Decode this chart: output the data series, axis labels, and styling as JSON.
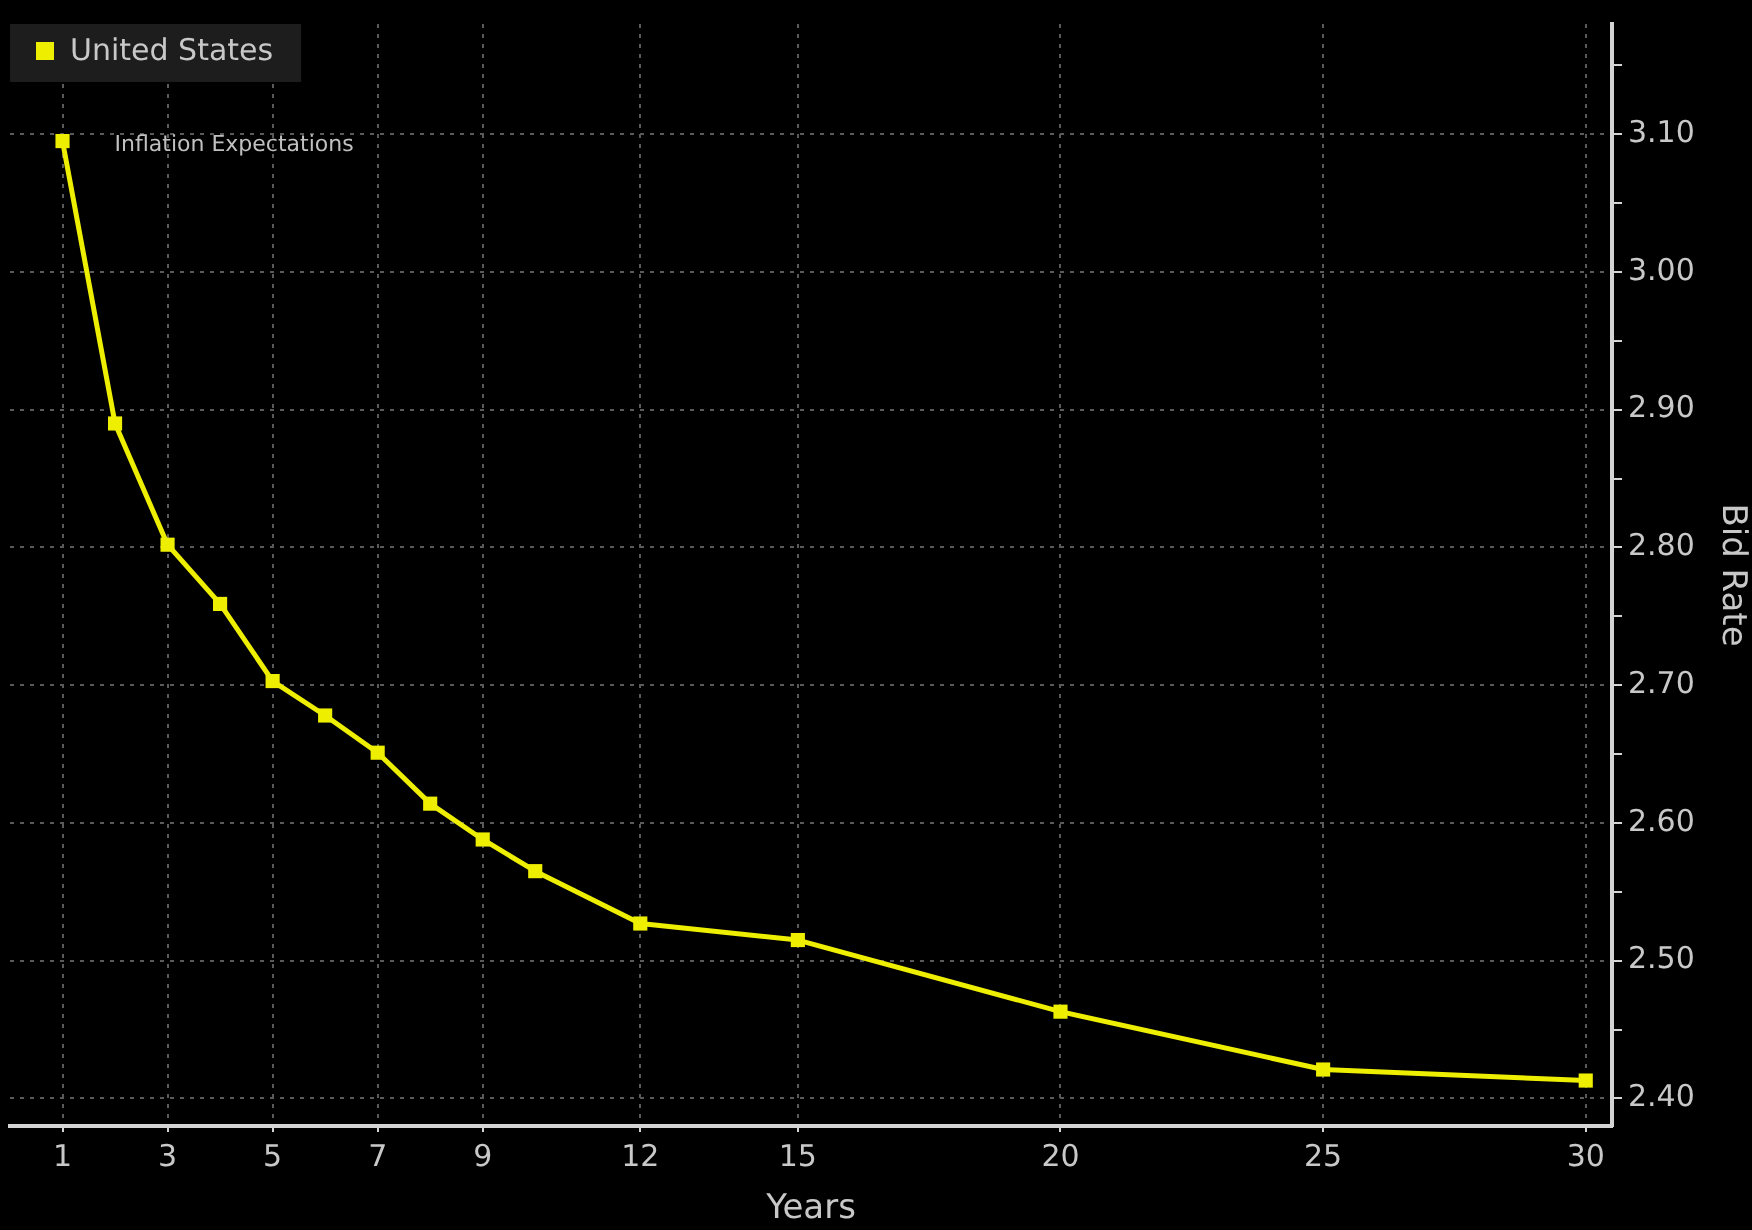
{
  "chart_data": {
    "type": "line",
    "xlabel": "Years",
    "ylabel": "Bid Rate",
    "x": [
      1,
      2,
      3,
      4,
      5,
      6,
      7,
      8,
      9,
      10,
      12,
      15,
      20,
      25,
      30
    ],
    "series": [
      {
        "name": "United States",
        "color": "#eeee00",
        "values": [
          3.095,
          2.89,
          2.802,
          2.759,
          2.703,
          2.678,
          2.651,
          2.614,
          2.588,
          2.565,
          2.527,
          2.515,
          2.463,
          2.421,
          2.413
        ]
      }
    ],
    "annotations": [
      {
        "text": "Inflation Expectations",
        "x": 1,
        "y": 3.095
      }
    ],
    "xlim": [
      0,
      30.5
    ],
    "xticks": [
      1,
      3,
      5,
      7,
      9,
      12,
      15,
      20,
      25,
      30
    ],
    "ylim": [
      2.38,
      3.18
    ],
    "yticks": [
      {
        "value": 2.4,
        "label": "2.40"
      },
      {
        "value": 2.45,
        "label": null
      },
      {
        "value": 2.5,
        "label": "2.50"
      },
      {
        "value": 2.55,
        "label": null
      },
      {
        "value": 2.6,
        "label": "2.60"
      },
      {
        "value": 2.65,
        "label": null
      },
      {
        "value": 2.7,
        "label": "2.70"
      },
      {
        "value": 2.75,
        "label": null
      },
      {
        "value": 2.8,
        "label": "2.80"
      },
      {
        "value": 2.85,
        "label": null
      },
      {
        "value": 2.9,
        "label": "2.90"
      },
      {
        "value": 2.95,
        "label": null
      },
      {
        "value": 3.0,
        "label": "3.00"
      },
      {
        "value": 3.05,
        "label": null
      },
      {
        "value": 3.1,
        "label": "3.10"
      },
      {
        "value": 3.15,
        "label": null
      }
    ],
    "grid": true,
    "legend": "top left",
    "marker": "square",
    "line_style": "solid"
  }
}
